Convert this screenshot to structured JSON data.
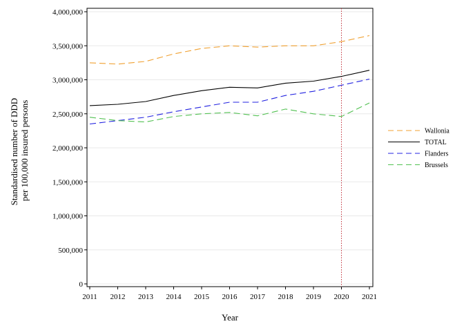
{
  "chart_data": {
    "type": "line",
    "title": "",
    "xlabel": "Year",
    "ylabel_lines": [
      "Standardised number of DDD",
      "per 100,000 insured persons"
    ],
    "x": [
      2011,
      2012,
      2013,
      2014,
      2015,
      2016,
      2017,
      2018,
      2019,
      2020,
      2021
    ],
    "x_tick_labels": [
      "2011",
      "2012",
      "2013",
      "2014",
      "2015",
      "2016",
      "2017",
      "2018",
      "2019",
      "2020",
      "2021"
    ],
    "xlim": [
      2011,
      2021
    ],
    "ylim": [
      0,
      4000000
    ],
    "y_ticks": [
      0,
      500000,
      1000000,
      1500000,
      2000000,
      2500000,
      3000000,
      3500000,
      4000000
    ],
    "y_tick_labels": [
      "0",
      "500,000",
      "1,000,000",
      "1,500,000",
      "2,000,000",
      "2,500,000",
      "3,000,000",
      "3,500,000",
      "4,000,000"
    ],
    "grid": true,
    "legend_position": "right",
    "reference_line": {
      "x": 2020,
      "color": "#c0303a",
      "style": "dotted"
    },
    "series": [
      {
        "name": "Wallonia",
        "color": "#f0a030",
        "dash": "dashed",
        "values": [
          3250000,
          3230000,
          3270000,
          3380000,
          3460000,
          3500000,
          3480000,
          3500000,
          3500000,
          3560000,
          3650000
        ]
      },
      {
        "name": "TOTAL",
        "color": "#000000",
        "dash": "solid",
        "values": [
          2620000,
          2640000,
          2680000,
          2770000,
          2840000,
          2890000,
          2880000,
          2950000,
          2980000,
          3050000,
          3140000
        ]
      },
      {
        "name": "Flanders",
        "color": "#2020e0",
        "dash": "dashed",
        "values": [
          2350000,
          2400000,
          2450000,
          2530000,
          2600000,
          2670000,
          2670000,
          2770000,
          2830000,
          2920000,
          3010000
        ]
      },
      {
        "name": "Brussels",
        "color": "#50c050",
        "dash": "dashed",
        "values": [
          2450000,
          2400000,
          2380000,
          2460000,
          2500000,
          2520000,
          2470000,
          2570000,
          2500000,
          2460000,
          2660000
        ]
      }
    ]
  }
}
